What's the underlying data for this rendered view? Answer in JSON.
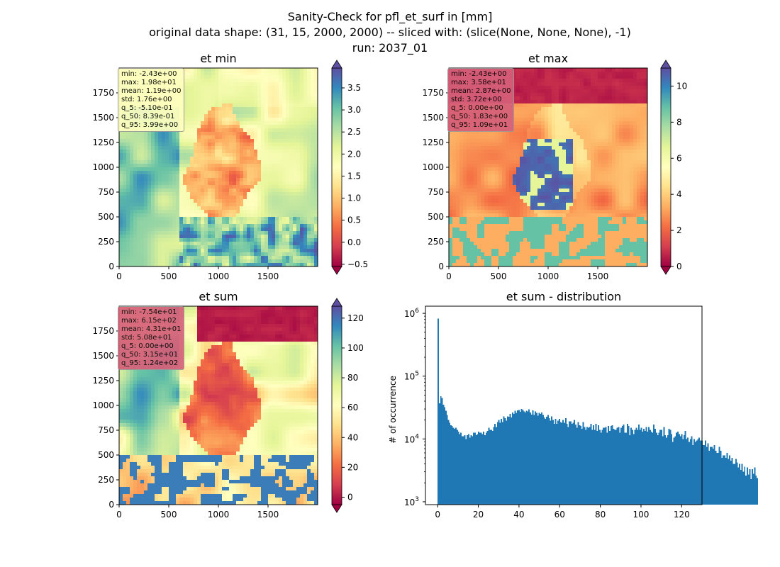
{
  "suptitle": {
    "line1": "Sanity-Check for pfl_et_surf in [mm]",
    "line2": "original data shape: (31, 15, 2000, 2000) -- sliced with: (slice(None, None, None), -1)",
    "line3": "run: 2037_01"
  },
  "colors": {
    "bar": "#1f77b4",
    "colormap": "Spectral",
    "colormap_stops": [
      "#9e0142",
      "#d53e4f",
      "#f46d43",
      "#fdae61",
      "#fee08b",
      "#ffffbf",
      "#e6f598",
      "#abdda4",
      "#66c2a5",
      "#3288bd",
      "#5e4fa2"
    ]
  },
  "chart_data": [
    {
      "type": "heatmap",
      "title": "et min",
      "xlim": [
        0,
        2000
      ],
      "ylim": [
        0,
        2000
      ],
      "xticks": [
        0,
        500,
        1000,
        1500
      ],
      "yticks": [
        0,
        250,
        500,
        750,
        1000,
        1250,
        1500,
        1750
      ],
      "colorbar": {
        "range": [
          -0.55,
          3.95
        ],
        "ticks": [
          -0.5,
          0.0,
          0.5,
          1.0,
          1.5,
          2.0,
          2.5,
          3.0,
          3.5
        ],
        "tick_labels": [
          "−0.5",
          "0.0",
          "0.5",
          "1.0",
          "1.5",
          "2.0",
          "2.5",
          "3.0",
          "3.5"
        ],
        "extend": "both"
      },
      "stats_box_color": "#ffffbf",
      "stats": [
        "min: -2.43e+00",
        "max: 1.98e+01",
        "mean: 1.19e+00",
        "std: 1.76e+00",
        "q_5: -5.10e-01",
        "q_50: 8.39e-01",
        "q_95: 3.99e+00"
      ]
    },
    {
      "type": "heatmap",
      "title": "et max",
      "xlim": [
        0,
        2000
      ],
      "ylim": [
        0,
        2000
      ],
      "xticks": [
        0,
        500,
        1000,
        1500
      ],
      "yticks": [
        0,
        250,
        500,
        750,
        1000,
        1250,
        1500,
        1750
      ],
      "colorbar": {
        "range": [
          0,
          11
        ],
        "ticks": [
          0,
          2,
          4,
          6,
          8,
          10
        ],
        "tick_labels": [
          "0",
          "2",
          "4",
          "6",
          "8",
          "10"
        ],
        "extend": "both"
      },
      "stats_box_color": "#d6607a",
      "stats": [
        "min: -2.43e+00",
        "max: 3.58e+01",
        "mean: 2.87e+00",
        "std: 3.72e+00",
        "q_5: 0.00e+00",
        "q_50: 1.83e+00",
        "q_95: 1.09e+01"
      ]
    },
    {
      "type": "heatmap",
      "title": "et sum",
      "xlim": [
        0,
        2000
      ],
      "ylim": [
        0,
        2000
      ],
      "xticks": [
        0,
        500,
        1000,
        1500
      ],
      "yticks": [
        0,
        250,
        500,
        750,
        1000,
        1250,
        1500,
        1750
      ],
      "colorbar": {
        "range": [
          -5,
          128
        ],
        "ticks": [
          0,
          20,
          40,
          60,
          80,
          100,
          120
        ],
        "tick_labels": [
          "0",
          "20",
          "40",
          "60",
          "80",
          "100",
          "120"
        ],
        "extend": "both"
      },
      "stats_box_color": "#d6607a",
      "stats": [
        "min: -7.54e+01",
        "max: 6.15e+02",
        "mean: 4.31e+01",
        "std: 5.08e+01",
        "q_5: 0.00e+00",
        "q_50: 3.15e+01",
        "q_95: 1.24e+02"
      ]
    },
    {
      "type": "bar",
      "title": "et sum - distribution",
      "ylabel": "# of occurrence",
      "xlabel": "",
      "yscale": "log",
      "xlim": [
        -6,
        130
      ],
      "ylim": [
        900,
        1300000
      ],
      "xticks": [
        0,
        20,
        40,
        60,
        80,
        100,
        120
      ],
      "yticks": [
        1000,
        10000,
        100000,
        1000000
      ],
      "ytick_labels": [
        {
          "base": "10",
          "exp": "3"
        },
        {
          "base": "10",
          "exp": "4"
        },
        {
          "base": "10",
          "exp": "5"
        },
        {
          "base": "10",
          "exp": "6"
        }
      ],
      "bin_edges_start": 0,
      "bin_width": 0.62,
      "values": [
        820000,
        37000,
        48000,
        45000,
        35000,
        32000,
        28000,
        24000,
        20000,
        18000,
        16500,
        16000,
        15000,
        14500,
        15000,
        14000,
        13000,
        12000,
        12500,
        11000,
        11000,
        11500,
        10000,
        11500,
        12000,
        10500,
        11500,
        11000,
        12500,
        12500,
        11500,
        12000,
        13000,
        12500,
        12500,
        12000,
        13000,
        11500,
        12500,
        13500,
        15000,
        14000,
        14000,
        13500,
        15500,
        17500,
        15500,
        18500,
        20000,
        18000,
        21000,
        18500,
        23000,
        21500,
        19500,
        23000,
        22500,
        25000,
        22000,
        26500,
        25000,
        28000,
        26000,
        28500,
        29000,
        27000,
        30000,
        29000,
        27500,
        26500,
        28000,
        27500,
        29500,
        26500,
        24500,
        28500,
        24000,
        27500,
        26000,
        23500,
        26000,
        25000,
        26500,
        24000,
        22000,
        21000,
        22500,
        24000,
        21500,
        19500,
        23000,
        20000,
        17500,
        21000,
        17500,
        19500,
        21000,
        18500,
        18000,
        20000,
        18000,
        21500,
        17500,
        15500,
        19000,
        19000,
        17500,
        18000,
        20000,
        17000,
        15000,
        18500,
        16500,
        16000,
        14500,
        18500,
        15500,
        14000,
        15500,
        15000,
        15500,
        17500,
        14000,
        16500,
        14000,
        17500,
        13500,
        16500,
        14000,
        12500,
        14000,
        15000,
        15000,
        15500,
        12500,
        16000,
        13500,
        16000,
        16500,
        14500,
        14000,
        14000,
        15000,
        15500,
        12500,
        15000,
        16000,
        17000,
        12500,
        12500,
        17500,
        16000,
        11500,
        15000,
        14000,
        12000,
        14000,
        15000,
        14000,
        17000,
        14000,
        15000,
        13000,
        14500,
        13500,
        15500,
        13000,
        15500,
        14000,
        13000,
        12500,
        17000,
        14500,
        12500,
        11500,
        12500,
        14000,
        14000,
        11000,
        15500,
        11500,
        10500,
        11500,
        14500,
        14000,
        12000,
        9000,
        10500,
        11000,
        12500,
        13000,
        12000,
        11000,
        12000,
        10000,
        11500,
        13500,
        10000,
        10500,
        9000,
        10000,
        11000,
        8000,
        10000,
        9000,
        9500,
        10000,
        10500,
        9500,
        9500,
        8000,
        8000,
        9500,
        7500,
        8500,
        6500,
        7500,
        7500,
        7000,
        8000,
        6500,
        6000,
        6000,
        7500,
        6500,
        5000,
        5500,
        5500,
        5000,
        6000,
        4800,
        5500,
        4500,
        5000,
        4000,
        4000,
        4800,
        4200,
        3500,
        4000,
        3200,
        4000,
        3000,
        3600,
        2600,
        3500,
        2700,
        3300,
        2300,
        3300,
        2800,
        3500,
        2600,
        2400
      ]
    }
  ]
}
